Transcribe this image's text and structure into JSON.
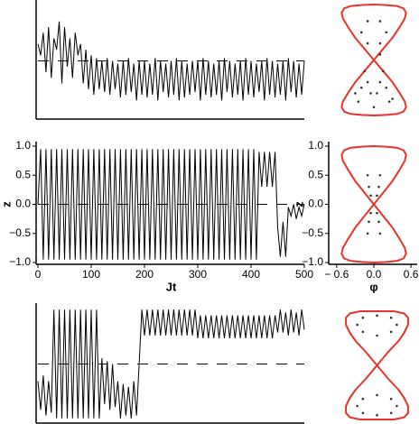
{
  "chart_data": [
    {
      "type": "line",
      "axes": true,
      "xlim": [
        0,
        500
      ],
      "ylim": [
        -1,
        1
      ],
      "ref_line": 0,
      "x": [
        0,
        5,
        10,
        15,
        20,
        25,
        30,
        35,
        40,
        45,
        50,
        55,
        60,
        65,
        70,
        75,
        80,
        85,
        90,
        95,
        100,
        105,
        110,
        115,
        120,
        125,
        130,
        135,
        140,
        145,
        150,
        155,
        160,
        165,
        170,
        175,
        180,
        185,
        190,
        195,
        200,
        205,
        210,
        215,
        220,
        225,
        230,
        235,
        240,
        245,
        250,
        255,
        260,
        265,
        270,
        275,
        280,
        285,
        290,
        295,
        300,
        305,
        310,
        315,
        320,
        325,
        330,
        335,
        340,
        345,
        350,
        355,
        360,
        365,
        370,
        375,
        380,
        385,
        390,
        395,
        400,
        405,
        410,
        415,
        420,
        425,
        430,
        435,
        440,
        445,
        450,
        455,
        460,
        465,
        470,
        475,
        480,
        485,
        490,
        495,
        500
      ],
      "series": [
        {
          "color": "#000000",
          "values": [
            0.3,
            0.1,
            0.5,
            -0.2,
            0.6,
            -0.3,
            0.4,
            0.2,
            0.7,
            -0.4,
            0.6,
            -0.1,
            0.4,
            -0.3,
            0.5,
            0.1,
            0.3,
            -0.4,
            0.2,
            -0.5,
            0.1,
            -0.6,
            0.05,
            -0.5,
            0.0,
            -0.55,
            0.05,
            -0.6,
            0.0,
            -0.5,
            -0.05,
            -0.65,
            0.0,
            -0.6,
            0.05,
            -0.55,
            -0.05,
            -0.7,
            0.0,
            -0.6,
            0.0,
            -0.65,
            -0.05,
            -0.6,
            0.05,
            -0.7,
            0.0,
            -0.55,
            -0.05,
            -0.65,
            0.0,
            -0.6,
            0.05,
            -0.7,
            0.0,
            -0.65,
            -0.05,
            -0.6,
            0.0,
            -0.55,
            0.0,
            -0.7,
            0.05,
            -0.6,
            0.0,
            -0.65,
            -0.05,
            -0.6,
            0.0,
            -0.7,
            0.05,
            -0.55,
            0.0,
            -0.65,
            -0.05,
            -0.6,
            0.0,
            -0.7,
            0.05,
            -0.6,
            0.0,
            -0.65,
            -0.05,
            -0.55,
            0.0,
            -0.7,
            0.05,
            -0.6,
            0.0,
            -0.65,
            -0.05,
            -0.6,
            0.0,
            -0.7,
            0.05,
            -0.55,
            0.0,
            -0.65,
            -0.05,
            -0.6,
            0.0
          ]
        }
      ]
    },
    {
      "type": "phase",
      "xlim": [
        -0.7,
        0.7
      ],
      "ylim": [
        -1,
        1
      ],
      "series": [
        {
          "color": "#e8332a",
          "style": "line",
          "x": [
            0,
            0.15,
            0.3,
            0.42,
            0.5,
            0.52,
            0.48,
            0.38,
            0.2,
            0,
            -0.2,
            -0.38,
            -0.48,
            -0.52,
            -0.5,
            -0.42,
            -0.3,
            -0.15,
            0,
            0.15,
            0.3,
            0.42,
            0.5,
            0.52,
            0.48,
            0.38,
            0.2,
            0,
            -0.2,
            -0.38,
            -0.48,
            -0.52,
            -0.5,
            -0.42,
            -0.3,
            -0.15,
            0
          ],
          "values": [
            0,
            0.2,
            0.4,
            0.6,
            0.75,
            0.85,
            0.93,
            0.97,
            0.99,
            1.0,
            0.99,
            0.97,
            0.93,
            0.85,
            0.75,
            0.6,
            0.4,
            0.2,
            0,
            -0.2,
            -0.4,
            -0.6,
            -0.75,
            -0.85,
            -0.93,
            -0.97,
            -0.99,
            -1.0,
            -0.99,
            -0.97,
            -0.93,
            -0.85,
            -0.75,
            -0.6,
            -0.4,
            -0.2,
            0
          ]
        },
        {
          "color": "#333333",
          "style": "dots",
          "x": [
            0.1,
            0.2,
            0.1,
            -0.1,
            -0.2,
            -0.1,
            0.1,
            0.15,
            -0.15,
            -0.1,
            0.1,
            0.05,
            -0.05,
            -0.2,
            -0.3,
            0.2,
            0.3,
            -0.25,
            0.25,
            0
          ],
          "values": [
            0.7,
            0.5,
            0.3,
            0.3,
            0.5,
            0.7,
            0.1,
            -0.2,
            -0.2,
            -0.4,
            -0.4,
            -0.6,
            -0.6,
            -0.5,
            -0.6,
            -0.5,
            -0.7,
            -0.75,
            -0.75,
            -0.85
          ]
        }
      ]
    },
    {
      "type": "line",
      "axes": true,
      "xlim": [
        0,
        500
      ],
      "ylim": [
        -1,
        1
      ],
      "ref_line": 0,
      "xlabel": "Jt",
      "ylabel": "z",
      "xticks": [
        0,
        100,
        200,
        300,
        400,
        500
      ],
      "yticks": [
        {
          "value": 1,
          "label": "1.0"
        },
        0.5,
        {
          "value": 0,
          "label": "0.0"
        },
        {
          "value": -0.5,
          "label": "−0.5"
        },
        {
          "value": -1,
          "label": "−1.0"
        }
      ],
      "x": [
        0,
        5,
        10,
        15,
        20,
        25,
        30,
        35,
        40,
        45,
        50,
        55,
        60,
        65,
        70,
        75,
        80,
        85,
        90,
        95,
        100,
        105,
        110,
        115,
        120,
        125,
        130,
        135,
        140,
        145,
        150,
        155,
        160,
        165,
        170,
        175,
        180,
        185,
        190,
        195,
        200,
        205,
        210,
        215,
        220,
        225,
        230,
        235,
        240,
        245,
        250,
        255,
        260,
        265,
        270,
        275,
        280,
        285,
        290,
        295,
        300,
        305,
        310,
        315,
        320,
        325,
        330,
        335,
        340,
        345,
        350,
        355,
        360,
        365,
        370,
        375,
        380,
        385,
        390,
        395,
        400,
        405,
        410,
        415,
        420,
        425,
        430,
        435,
        440,
        445,
        450,
        455,
        460,
        465,
        470,
        475,
        480,
        485,
        490,
        495,
        500
      ],
      "series": [
        {
          "color": "#000000",
          "values": [
            0,
            0.95,
            -0.95,
            0.95,
            -0.95,
            0.95,
            -0.95,
            0.95,
            -0.95,
            0.95,
            -0.95,
            0.95,
            -0.95,
            0.95,
            -0.95,
            0.95,
            -0.95,
            0.95,
            -0.95,
            0.95,
            -0.95,
            0.95,
            -0.95,
            0.95,
            -0.95,
            0.95,
            -0.95,
            0.95,
            -0.95,
            0.95,
            -0.95,
            0.95,
            -0.95,
            0.95,
            -0.95,
            0.95,
            -0.95,
            0.95,
            -0.95,
            0.95,
            -0.95,
            0.95,
            -0.95,
            0.95,
            -0.95,
            0.95,
            -0.95,
            0.95,
            -0.95,
            0.95,
            -0.95,
            0.95,
            -0.95,
            0.95,
            -0.95,
            0.95,
            -0.95,
            0.95,
            -0.95,
            0.95,
            -0.95,
            0.95,
            -0.95,
            0.95,
            -0.95,
            0.95,
            -0.95,
            0.95,
            -0.95,
            0.95,
            -0.95,
            0.95,
            -0.95,
            0.95,
            -0.95,
            0.95,
            -0.95,
            0.95,
            -0.95,
            0.95,
            -0.95,
            0.95,
            -0.95,
            0.9,
            0.3,
            0.9,
            0.3,
            0.9,
            0.3,
            0.9,
            -0.4,
            -0.9,
            -0.3,
            -0.9,
            -0.05,
            -0.2,
            0,
            -0.25,
            -0.05,
            -0.2,
            0
          ]
        }
      ]
    },
    {
      "type": "phase",
      "axes": true,
      "xlim": [
        -0.7,
        0.7
      ],
      "ylim": [
        -1,
        1
      ],
      "xlabel": "φ",
      "ylabel": "z",
      "xticks": [
        {
          "value": -0.6,
          "label": "− 0.6"
        },
        {
          "value": 0,
          "label": "0.0"
        },
        0.6
      ],
      "yticks": [
        {
          "value": 1,
          "label": "1.0"
        },
        0.5,
        {
          "value": 0,
          "label": "0.0"
        },
        {
          "value": -0.5,
          "label": "−0.5"
        },
        {
          "value": -1,
          "label": "−1.0"
        }
      ],
      "series": [
        {
          "color": "#333333",
          "style": "dots",
          "x": [
            -0.1,
            0.1,
            -0.08,
            0.08,
            -0.05,
            0.05,
            0,
            -0.05,
            0.05,
            -0.08,
            0.08,
            -0.1,
            0.1
          ],
          "values": [
            0.5,
            0.5,
            0.3,
            0.3,
            0.15,
            0.15,
            0,
            -0.15,
            -0.15,
            -0.3,
            -0.3,
            -0.5,
            -0.5
          ]
        },
        {
          "color": "#e8332a",
          "style": "line",
          "x": [
            0,
            0.15,
            0.3,
            0.42,
            0.5,
            0.52,
            0.48,
            0.38,
            0.2,
            0,
            -0.2,
            -0.38,
            -0.48,
            -0.52,
            -0.5,
            -0.42,
            -0.3,
            -0.15,
            0,
            0.15,
            0.3,
            0.42,
            0.5,
            0.52,
            0.48,
            0.38,
            0.2,
            0,
            -0.2,
            -0.38,
            -0.48,
            -0.52,
            -0.5,
            -0.42,
            -0.3,
            -0.15,
            0
          ],
          "values": [
            0,
            0.2,
            0.4,
            0.6,
            0.75,
            0.85,
            0.93,
            0.97,
            0.99,
            1.0,
            0.99,
            0.97,
            0.93,
            0.85,
            0.75,
            0.6,
            0.4,
            0.2,
            0,
            -0.2,
            -0.4,
            -0.6,
            -0.75,
            -0.85,
            -0.93,
            -0.97,
            -0.99,
            -1.0,
            -0.99,
            -0.97,
            -0.93,
            -0.85,
            -0.75,
            -0.6,
            -0.4,
            -0.2,
            0
          ]
        }
      ]
    },
    {
      "type": "line",
      "axes": true,
      "xlim": [
        0,
        500
      ],
      "ylim": [
        -1,
        1
      ],
      "ref_line": 0,
      "x": [
        0,
        5,
        10,
        15,
        20,
        25,
        30,
        35,
        40,
        45,
        50,
        55,
        60,
        65,
        70,
        75,
        80,
        85,
        90,
        95,
        100,
        105,
        110,
        115,
        120,
        125,
        130,
        135,
        140,
        145,
        150,
        155,
        160,
        165,
        170,
        175,
        180,
        185,
        190,
        195,
        200,
        205,
        210,
        215,
        220,
        225,
        230,
        235,
        240,
        245,
        250,
        255,
        260,
        265,
        270,
        275,
        280,
        285,
        290,
        295,
        300,
        305,
        310,
        315,
        320,
        325,
        330,
        335,
        340,
        345,
        350,
        355,
        360,
        365,
        370,
        375,
        380,
        385,
        390,
        395,
        400,
        405,
        410,
        415,
        420,
        425,
        430,
        435,
        440,
        445,
        450,
        455,
        460,
        465,
        470,
        475,
        480,
        485,
        490,
        495,
        500
      ],
      "series": [
        {
          "color": "#000000",
          "values": [
            -0.3,
            -0.8,
            -0.2,
            -0.9,
            -0.3,
            -0.85,
            0.95,
            -0.95,
            0.95,
            -0.95,
            0.95,
            -0.95,
            0.95,
            -0.95,
            0.95,
            -0.95,
            0.95,
            -0.95,
            0.95,
            -0.95,
            0.95,
            -0.95,
            0.95,
            -0.95,
            0.1,
            -0.7,
            0.05,
            -0.8,
            0.0,
            -0.75,
            -0.3,
            -0.95,
            -0.35,
            -0.9,
            -0.4,
            -0.95,
            -0.3,
            -0.9,
            0.0,
            0.95,
            0.5,
            0.95,
            0.5,
            0.95,
            0.5,
            0.95,
            0.5,
            0.95,
            0.5,
            0.95,
            0.5,
            0.95,
            0.5,
            0.95,
            0.5,
            0.95,
            0.5,
            0.95,
            0.5,
            0.95,
            0.45,
            0.85,
            0.45,
            0.85,
            0.45,
            0.85,
            0.45,
            0.85,
            0.45,
            0.85,
            0.45,
            0.85,
            0.45,
            0.85,
            0.45,
            0.85,
            0.45,
            0.85,
            0.45,
            0.85,
            0.45,
            0.85,
            0.45,
            0.85,
            0.45,
            0.85,
            0.45,
            0.85,
            0.45,
            0.85,
            0.55,
            0.95,
            0.55,
            0.9,
            0.5,
            0.95,
            0.55,
            0.9,
            0.5,
            0.95,
            0.6
          ]
        }
      ]
    },
    {
      "type": "phase",
      "xlim": [
        -0.6,
        0.6
      ],
      "ylim": [
        -1,
        1
      ],
      "series": [
        {
          "color": "#333333",
          "style": "dots",
          "x": [
            0.35,
            0.25,
            0,
            -0.25,
            -0.35,
            -0.25,
            0,
            0.25,
            0.35,
            0.25,
            0,
            -0.25,
            -0.35,
            -0.25,
            0,
            0.25
          ],
          "values": [
            0.75,
            0.88,
            0.92,
            0.88,
            0.75,
            0.62,
            0.55,
            0.62,
            -0.75,
            -0.88,
            -0.92,
            -0.88,
            -0.75,
            -0.62,
            -0.55,
            -0.62
          ]
        },
        {
          "color": "#e8332a",
          "style": "line",
          "x": [
            0,
            0.2,
            0.38,
            0.48,
            0.55,
            0.55,
            0.48,
            0.3,
            0,
            -0.3,
            -0.48,
            -0.55,
            -0.55,
            -0.48,
            -0.38,
            -0.2,
            0,
            0.2,
            0.38,
            0.48,
            0.55,
            0.55,
            0.48,
            0.3,
            0,
            -0.3,
            -0.48,
            -0.55,
            -0.55,
            -0.48,
            -0.38,
            -0.2,
            0
          ],
          "values": [
            0,
            0.25,
            0.45,
            0.6,
            0.75,
            0.88,
            0.96,
            1.0,
            1.0,
            1.0,
            0.96,
            0.88,
            0.75,
            0.6,
            0.45,
            0.25,
            0,
            -0.25,
            -0.45,
            -0.6,
            -0.75,
            -0.88,
            -0.96,
            -1.0,
            -1.0,
            -1.0,
            -0.96,
            -0.88,
            -0.75,
            -0.6,
            -0.45,
            -0.25,
            0
          ]
        }
      ]
    }
  ]
}
